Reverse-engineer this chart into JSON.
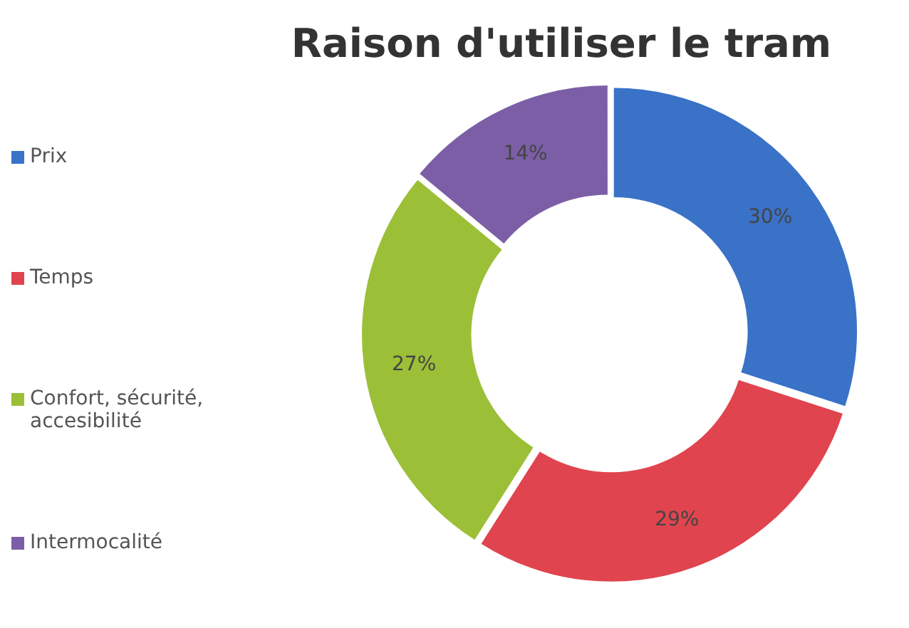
{
  "chart_data": {
    "type": "donut",
    "title": "Raison d'utiliser le tram",
    "categories": [
      "Prix",
      "Temps",
      "Confort, sécurité, accesibilité",
      "Intermocalité"
    ],
    "values": [
      30,
      29,
      27,
      14
    ],
    "colors": [
      "#3a72c8",
      "#e0444e",
      "#9cbf38",
      "#7c5ea6"
    ],
    "value_labels": [
      "30%",
      "29%",
      "27%",
      "14%"
    ],
    "legend": "left"
  }
}
